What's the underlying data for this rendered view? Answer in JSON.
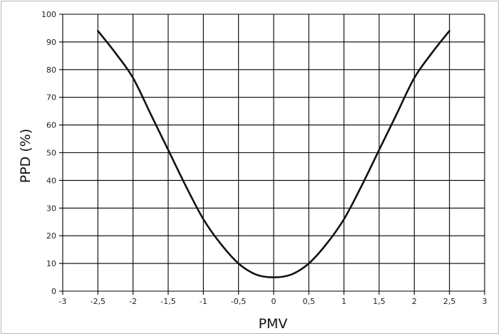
{
  "chart_data": {
    "type": "line",
    "title": "",
    "xlabel": "PMV",
    "ylabel": "PPD (%)",
    "xlim": [
      -3,
      3
    ],
    "ylim": [
      0,
      100
    ],
    "grid": true,
    "x_ticks": [
      -3,
      -2.5,
      -2,
      -1.5,
      -1,
      -0.5,
      0,
      0.5,
      1,
      1.5,
      2,
      2.5,
      3
    ],
    "x_tick_labels": [
      "-3",
      "-2,5",
      "-2",
      "-1,5",
      "-1",
      "-0,5",
      "0",
      "0,5",
      "1",
      "1,5",
      "2",
      "2,5",
      "3"
    ],
    "y_ticks": [
      0,
      10,
      20,
      30,
      40,
      50,
      60,
      70,
      80,
      90,
      100
    ],
    "y_tick_labels": [
      "0",
      "10",
      "20",
      "30",
      "40",
      "50",
      "60",
      "70",
      "80",
      "90",
      "100"
    ],
    "series": [
      {
        "x": [
          -2.5,
          -2.25,
          -2,
          -1.75,
          -1.5,
          -1.25,
          -1,
          -0.75,
          -0.5,
          -0.25,
          0,
          0.25,
          0.5,
          0.75,
          1,
          1.25,
          1.5,
          1.75,
          2,
          2.25,
          2.5
        ],
        "y": [
          94,
          86,
          77,
          64,
          51,
          38,
          26,
          17,
          10,
          6,
          5,
          6,
          10,
          17,
          26,
          38,
          51,
          64,
          77,
          86,
          94
        ]
      }
    ]
  }
}
